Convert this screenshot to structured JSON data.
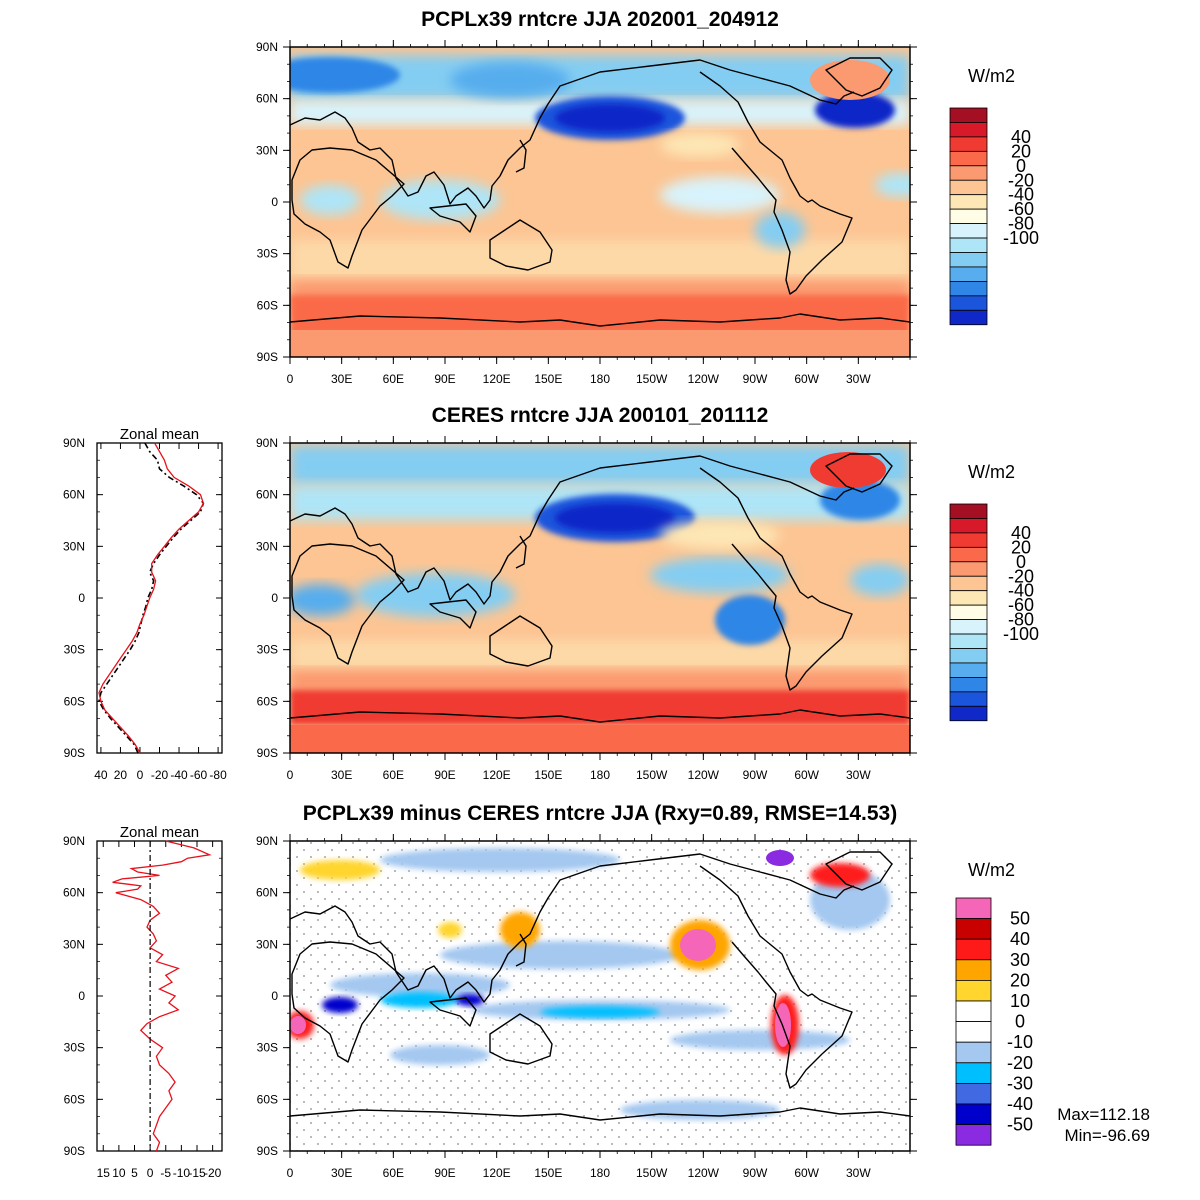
{
  "panels": [
    {
      "id": "model",
      "title": "PCPLx39 rntcre JJA 202001_204912",
      "unit": "W/m2",
      "colorbar": {
        "labels": [
          "40",
          "20",
          "0",
          "-20",
          "-40",
          "-60",
          "-80",
          "-100"
        ],
        "colors": [
          "#a50f24",
          "#d7192a",
          "#f03b32",
          "#fa6a4a",
          "#fb9970",
          "#fcc593",
          "#fde7b5",
          "#fffde5",
          "#d8f3fb",
          "#aee5f7",
          "#84cdf2",
          "#57aded",
          "#2f86e6",
          "#1a55dc",
          "#1028c8"
        ]
      },
      "zonal_mean": null
    },
    {
      "id": "obs",
      "title": "CERES rntcre JJA 200101_201112",
      "unit": "W/m2",
      "colorbar": {
        "labels": [
          "40",
          "20",
          "0",
          "-20",
          "-40",
          "-60",
          "-80",
          "-100"
        ],
        "colors": [
          "#a50f24",
          "#d7192a",
          "#f03b32",
          "#fa6a4a",
          "#fb9970",
          "#fcc593",
          "#fde7b5",
          "#fffde5",
          "#d8f3fb",
          "#aee5f7",
          "#84cdf2",
          "#57aded",
          "#2f86e6",
          "#1a55dc",
          "#1028c8"
        ]
      },
      "zonal_mean": {
        "title": "Zonal mean",
        "xticks": [
          "40",
          "20",
          "0",
          "-20",
          "-40",
          "-60",
          "-80"
        ]
      }
    },
    {
      "id": "diff",
      "title": "PCPLx39 minus CERES rntcre JJA (Rxy=0.89, RMSE=14.53)",
      "unit": "W/m2",
      "colorbar": {
        "labels": [
          "50",
          "40",
          "30",
          "20",
          "10",
          "0",
          "-10",
          "-20",
          "-30",
          "-40",
          "-50"
        ],
        "colors": [
          "#f666b8",
          "#c80000",
          "#ff1a1a",
          "#ffa500",
          "#ffd52e",
          "#ffffff",
          "#ffffff",
          "#a4c8f0",
          "#00bfff",
          "#4169e1",
          "#0000cd",
          "#8a2be2"
        ]
      },
      "zonal_mean": {
        "title": "Zonal mean",
        "xticks": [
          "15",
          "10",
          "5",
          "0",
          "-5",
          "-10",
          "-15",
          "-20"
        ]
      },
      "max_text": "Max=112.18",
      "min_text": "Min=-96.69"
    }
  ],
  "lat_labels": [
    "90N",
    "60N",
    "30N",
    "0",
    "30S",
    "60S",
    "90S"
  ],
  "lon_labels": [
    "0",
    "30E",
    "60E",
    "90E",
    "120E",
    "150E",
    "180",
    "150W",
    "120W",
    "90W",
    "60W",
    "30W"
  ],
  "zonal_mean_curves": {
    "obs": {
      "lat": [
        90,
        85,
        80,
        75,
        70,
        65,
        60,
        55,
        50,
        45,
        40,
        35,
        30,
        25,
        20,
        15,
        10,
        5,
        0,
        -5,
        -10,
        -15,
        -20,
        -25,
        -30,
        -35,
        -40,
        -45,
        -50,
        -55,
        -60,
        -65,
        -70,
        -75,
        -80,
        -85,
        -90
      ],
      "model": [
        -15,
        -20,
        -25,
        -28,
        -35,
        -50,
        -62,
        -65,
        -60,
        -50,
        -40,
        -32,
        -25,
        -18,
        -12,
        -12,
        -16,
        -14,
        -10,
        -7,
        -4,
        0,
        3,
        8,
        14,
        20,
        26,
        32,
        38,
        42,
        40,
        36,
        28,
        20,
        12,
        5,
        0
      ],
      "observed": [
        -5,
        -10,
        -18,
        -20,
        -30,
        -45,
        -58,
        -65,
        -62,
        -52,
        -42,
        -34,
        -27,
        -20,
        -14,
        -10,
        -14,
        -12,
        -8,
        -6,
        -3,
        -1,
        1,
        5,
        10,
        16,
        22,
        28,
        34,
        40,
        42,
        37,
        30,
        22,
        14,
        6,
        2
      ]
    },
    "diff": {
      "lat": [
        90,
        86,
        82,
        80,
        78,
        76,
        74,
        72,
        70,
        68,
        66,
        64,
        62,
        60,
        56,
        52,
        48,
        44,
        40,
        36,
        32,
        28,
        24,
        20,
        16,
        12,
        8,
        4,
        0,
        -4,
        -8,
        -12,
        -16,
        -20,
        -25,
        -30,
        -35,
        -40,
        -45,
        -50,
        -55,
        -60,
        -65,
        -70,
        -75,
        -80,
        -85,
        -90
      ],
      "values": [
        -5,
        -14,
        -19,
        -12,
        -10,
        -4,
        6,
        4,
        -3,
        9,
        12,
        3,
        4,
        11,
        3,
        -1,
        -3,
        0,
        1,
        -1,
        -2,
        0,
        -4,
        -2,
        -9,
        -5,
        -7,
        -3,
        -8,
        -6,
        -9,
        -3,
        1,
        3,
        0,
        -4,
        -2,
        -3,
        -6,
        -8,
        -6,
        -7,
        -5,
        -3,
        -2,
        -1,
        -3,
        -2
      ]
    }
  }
}
